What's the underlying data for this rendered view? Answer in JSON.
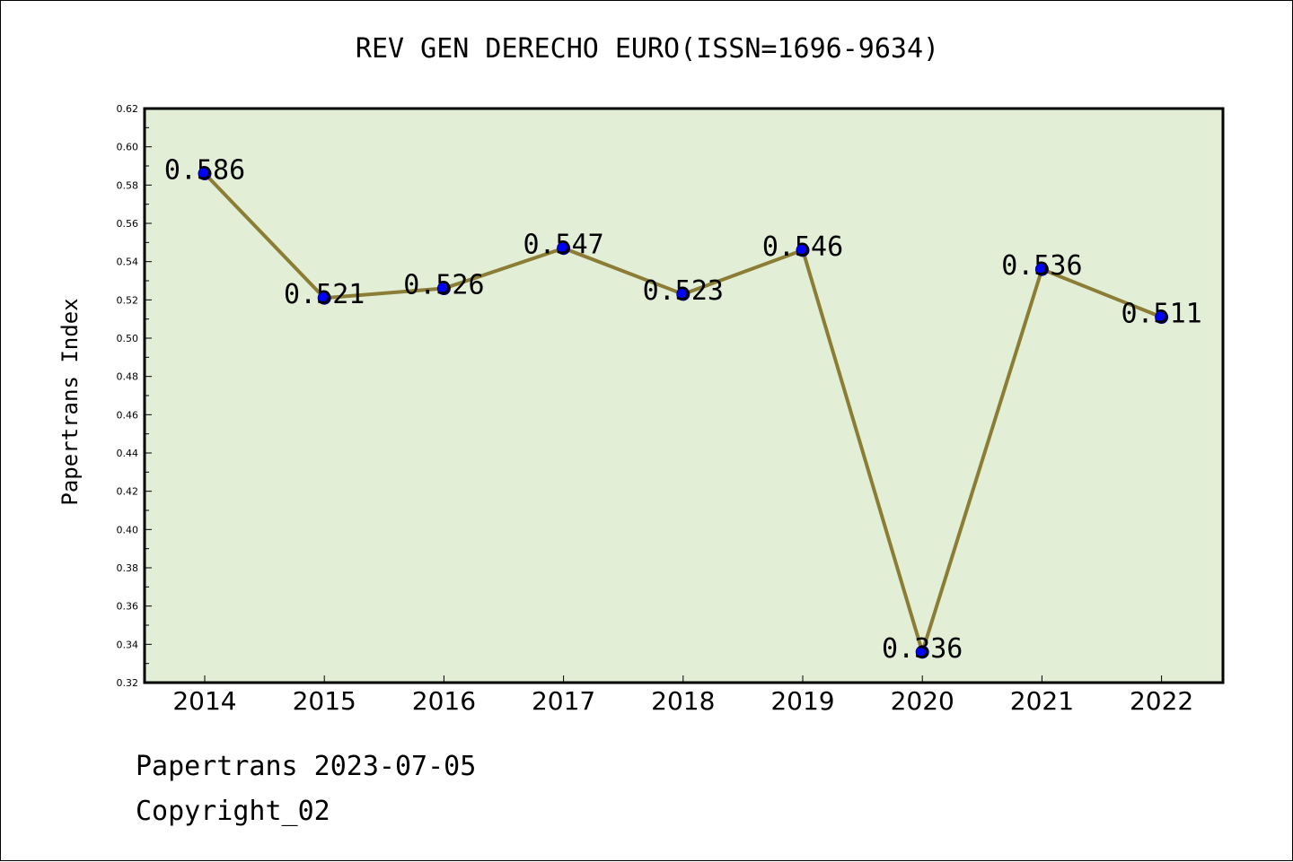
{
  "chart_data": {
    "type": "line",
    "title": "REV GEN DERECHO EURO(ISSN=1696-9634)",
    "xlabel": "",
    "ylabel": "Papertrans Index",
    "categories": [
      "2014",
      "2015",
      "2016",
      "2017",
      "2018",
      "2019",
      "2020",
      "2021",
      "2022"
    ],
    "series": [
      {
        "values": [
          0.586,
          0.521,
          0.526,
          0.547,
          0.523,
          0.546,
          0.336,
          0.536,
          0.511
        ]
      }
    ],
    "data_labels": [
      "0.586",
      "0.521",
      "0.526",
      "0.547",
      "0.523",
      "0.546",
      "0.336",
      "0.536",
      "0.511"
    ],
    "ylim": [
      0.32,
      0.62
    ],
    "yticks": [
      "0.32",
      "0.34",
      "0.36",
      "0.38",
      "0.40",
      "0.42",
      "0.44",
      "0.46",
      "0.48",
      "0.50",
      "0.52",
      "0.54",
      "0.56",
      "0.58",
      "0.60",
      "0.62"
    ],
    "grid": false,
    "colors": {
      "plot_background": "#e2efd6",
      "line": "#8b7d35",
      "marker": "#0000ff"
    }
  },
  "footer": {
    "date": "Papertrans 2023-07-05",
    "copyright": "Copyright_02"
  }
}
